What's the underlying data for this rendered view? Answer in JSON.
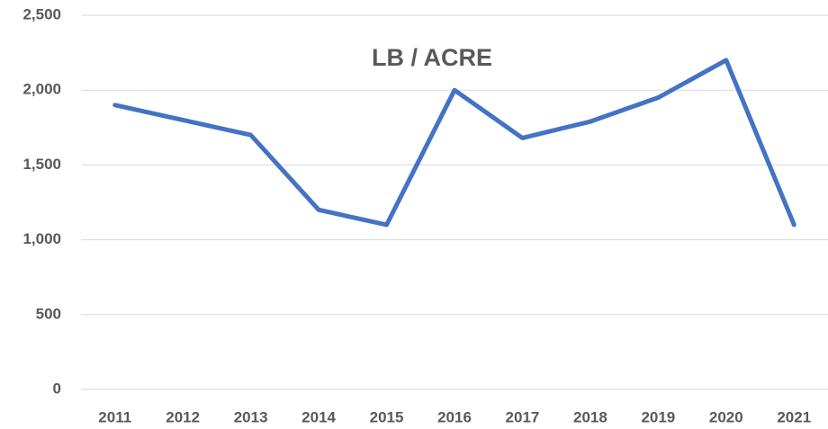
{
  "chart_data": {
    "type": "line",
    "title": "LB / ACRE",
    "categories": [
      "2011",
      "2012",
      "2013",
      "2014",
      "2015",
      "2016",
      "2017",
      "2018",
      "2019",
      "2020",
      "2021"
    ],
    "series": [
      {
        "name": "LB / ACRE",
        "color": "#4472c4",
        "values": [
          1900,
          1800,
          1700,
          1200,
          1100,
          2000,
          1680,
          1790,
          1950,
          2200,
          1100
        ]
      }
    ],
    "ylim": [
      0,
      2500
    ],
    "yticks": [
      0,
      500,
      {
        "value": 1000,
        "label": "1,000"
      },
      {
        "value": 1500,
        "label": "1,500"
      },
      {
        "value": 2000,
        "label": "2,000"
      },
      {
        "value": 2500,
        "label": "2,500"
      }
    ],
    "grid": true
  }
}
